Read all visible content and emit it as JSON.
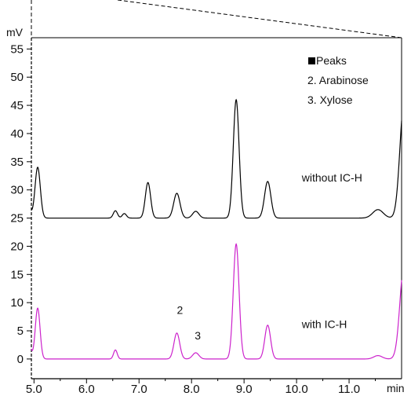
{
  "chart_data": {
    "type": "line",
    "xlabel": "min",
    "ylabel": "mV",
    "xlim": [
      4.95,
      12.0
    ],
    "ylim": [
      -3.5,
      57
    ],
    "x_ticks": [
      5.0,
      6.0,
      7.0,
      8.0,
      9.0,
      10.0,
      11.0
    ],
    "x_tick_labels": [
      "5.0",
      "6.0",
      "7.0",
      "8.0",
      "9.0",
      "10.0",
      "11.0"
    ],
    "y_ticks": [
      0,
      5,
      10,
      15,
      20,
      25,
      30,
      35,
      40,
      45,
      50,
      55
    ],
    "y_tick_labels": [
      "0",
      "5",
      "10",
      "15",
      "20",
      "25",
      "30",
      "35",
      "40",
      "45",
      "50",
      "55"
    ],
    "grid": false,
    "legend": {
      "title": "Peaks",
      "entries": [
        "2. Arabinose",
        "3. Xylose"
      ],
      "position": "top-right"
    },
    "annotations": [
      {
        "text": "without IC-H",
        "x": 10.1,
        "y": 31.5
      },
      {
        "text": "with IC-H",
        "x": 10.1,
        "y": 5.5
      },
      {
        "text": "2",
        "x": 7.72,
        "y": 8.0
      },
      {
        "text": "3",
        "x": 8.06,
        "y": 3.5
      }
    ],
    "series": [
      {
        "name": "without IC-H",
        "color": "#000000",
        "baseline": 25.0,
        "start_value": 26.0,
        "peaks": [
          {
            "x": 5.07,
            "h": 9.0,
            "w": 0.05
          },
          {
            "x": 6.55,
            "h": 1.3,
            "w": 0.04
          },
          {
            "x": 6.72,
            "h": 0.8,
            "w": 0.04
          },
          {
            "x": 7.17,
            "h": 6.3,
            "w": 0.05
          },
          {
            "x": 7.72,
            "h": 4.4,
            "w": 0.06
          },
          {
            "x": 8.08,
            "h": 1.2,
            "w": 0.06
          },
          {
            "x": 8.85,
            "h": 21.0,
            "w": 0.055
          },
          {
            "x": 9.45,
            "h": 6.5,
            "w": 0.06
          },
          {
            "x": 11.55,
            "h": 1.5,
            "w": 0.1
          },
          {
            "x": 12.05,
            "h": 21.0,
            "w": 0.08
          }
        ]
      },
      {
        "name": "with IC-H",
        "color": "#cc22cc",
        "baseline": 0.0,
        "start_value": 1.5,
        "peaks": [
          {
            "x": 5.07,
            "h": 9.0,
            "w": 0.045
          },
          {
            "x": 6.55,
            "h": 1.6,
            "w": 0.035
          },
          {
            "x": 7.72,
            "h": 4.6,
            "w": 0.055
          },
          {
            "x": 8.08,
            "h": 1.1,
            "w": 0.06
          },
          {
            "x": 8.85,
            "h": 20.4,
            "w": 0.055
          },
          {
            "x": 9.45,
            "h": 6.0,
            "w": 0.055
          },
          {
            "x": 11.55,
            "h": 0.6,
            "w": 0.08
          },
          {
            "x": 12.05,
            "h": 17.0,
            "w": 0.08
          }
        ]
      }
    ]
  }
}
